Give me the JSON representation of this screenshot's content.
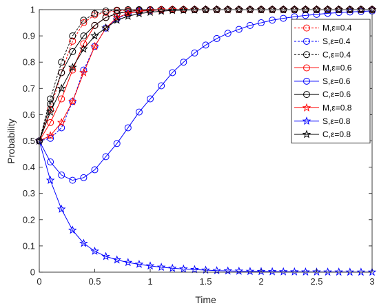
{
  "chart_data": {
    "type": "line",
    "title": "",
    "xlabel": "Time",
    "ylabel": "Probability",
    "xlim": [
      0,
      3
    ],
    "ylim": [
      0,
      1
    ],
    "xticks": [
      0,
      0.5,
      1,
      1.5,
      2,
      2.5,
      3
    ],
    "xtick_labels": [
      "0",
      "0.5",
      "1",
      "1.5",
      "2",
      "2.5",
      "3"
    ],
    "yticks": [
      0,
      0.1,
      0.2,
      0.3,
      0.4,
      0.5,
      0.6,
      0.7,
      0.8,
      0.9,
      1
    ],
    "ytick_labels": [
      "0",
      "0.1",
      "0.2",
      "0.3",
      "0.4",
      "0.5",
      "0.6",
      "0.7",
      "0.8",
      "0.9",
      "1"
    ],
    "grid": false,
    "legend_position": "top-right",
    "x": [
      0,
      0.1,
      0.2,
      0.3,
      0.4,
      0.5,
      0.6,
      0.7,
      0.8,
      0.9,
      1.0,
      1.1,
      1.2,
      1.3,
      1.4,
      1.5,
      1.6,
      1.7,
      1.8,
      1.9,
      2.0,
      2.1,
      2.2,
      2.3,
      2.4,
      2.5,
      2.6,
      2.7,
      2.8,
      2.9,
      3.0
    ],
    "series": [
      {
        "name": "M,ε=0.4",
        "color": "#ff0000",
        "line": "dash",
        "marker": "circle",
        "values": [
          0.5,
          0.62,
          0.76,
          0.88,
          0.95,
          0.98,
          0.99,
          0.995,
          0.998,
          0.999,
          1,
          1,
          1,
          1,
          1,
          1,
          1,
          1,
          1,
          1,
          1,
          1,
          1,
          1,
          1,
          1,
          1,
          1,
          1,
          1,
          1
        ]
      },
      {
        "name": "S,ε=0.4",
        "color": "#0000ff",
        "line": "dash",
        "marker": "circle",
        "values": [
          0.5,
          0.51,
          0.55,
          0.65,
          0.77,
          0.86,
          0.93,
          0.965,
          0.985,
          0.993,
          0.997,
          0.999,
          1,
          1,
          1,
          1,
          1,
          1,
          1,
          1,
          1,
          1,
          1,
          1,
          1,
          1,
          1,
          1,
          1,
          1,
          1
        ]
      },
      {
        "name": "C,ε=0.4",
        "color": "#000000",
        "line": "dash",
        "marker": "circle",
        "values": [
          0.5,
          0.66,
          0.8,
          0.9,
          0.96,
          0.985,
          0.995,
          0.998,
          1,
          1,
          1,
          1,
          1,
          1,
          1,
          1,
          1,
          1,
          1,
          1,
          1,
          1,
          1,
          1,
          1,
          1,
          1,
          1,
          1,
          1,
          1
        ]
      },
      {
        "name": "M,ε=0.6",
        "color": "#ff0000",
        "line": "solid",
        "marker": "circle",
        "values": [
          0.5,
          0.57,
          0.66,
          0.77,
          0.87,
          0.94,
          0.97,
          0.985,
          0.993,
          0.997,
          0.999,
          1,
          1,
          1,
          1,
          1,
          1,
          1,
          1,
          1,
          1,
          1,
          1,
          1,
          1,
          1,
          1,
          1,
          1,
          1,
          1
        ]
      },
      {
        "name": "S,ε=0.6",
        "color": "#0000ff",
        "line": "solid",
        "marker": "circle",
        "values": [
          0.5,
          0.42,
          0.37,
          0.35,
          0.36,
          0.39,
          0.44,
          0.49,
          0.55,
          0.61,
          0.66,
          0.71,
          0.76,
          0.8,
          0.835,
          0.865,
          0.89,
          0.91,
          0.925,
          0.94,
          0.95,
          0.96,
          0.967,
          0.973,
          0.978,
          0.982,
          0.986,
          0.989,
          0.991,
          0.993,
          0.995
        ]
      },
      {
        "name": "C,ε=0.6",
        "color": "#000000",
        "line": "solid",
        "marker": "circle",
        "values": [
          0.5,
          0.64,
          0.76,
          0.84,
          0.9,
          0.94,
          0.97,
          0.985,
          0.993,
          0.997,
          0.999,
          1,
          1,
          1,
          1,
          1,
          1,
          1,
          1,
          1,
          1,
          1,
          1,
          1,
          1,
          1,
          1,
          1,
          1,
          1,
          1
        ]
      },
      {
        "name": "M,ε=0.8",
        "color": "#ff0000",
        "line": "solid",
        "marker": "star",
        "values": [
          0.5,
          0.52,
          0.57,
          0.65,
          0.76,
          0.86,
          0.93,
          0.97,
          0.985,
          0.993,
          0.997,
          0.999,
          1,
          1,
          1,
          1,
          1,
          1,
          1,
          1,
          1,
          1,
          1,
          1,
          1,
          1,
          1,
          1,
          1,
          1,
          1
        ]
      },
      {
        "name": "S,ε=0.8",
        "color": "#0000ff",
        "line": "solid",
        "marker": "star",
        "values": [
          0.5,
          0.35,
          0.24,
          0.16,
          0.11,
          0.08,
          0.06,
          0.047,
          0.037,
          0.03,
          0.024,
          0.019,
          0.015,
          0.012,
          0.01,
          0.008,
          0.006,
          0.005,
          0.004,
          0.003,
          0.0025,
          0.002,
          0.0015,
          0.0012,
          0.001,
          0.0008,
          0.0006,
          0.0005,
          0.0004,
          0.0003,
          0.0002
        ]
      },
      {
        "name": "C,ε=0.8",
        "color": "#000000",
        "line": "solid",
        "marker": "star",
        "values": [
          0.5,
          0.61,
          0.7,
          0.78,
          0.85,
          0.9,
          0.93,
          0.96,
          0.975,
          0.985,
          0.99,
          0.994,
          0.997,
          0.998,
          0.999,
          1,
          1,
          1,
          1,
          1,
          1,
          1,
          1,
          1,
          1,
          1,
          1,
          1,
          1,
          1,
          1
        ]
      }
    ]
  }
}
